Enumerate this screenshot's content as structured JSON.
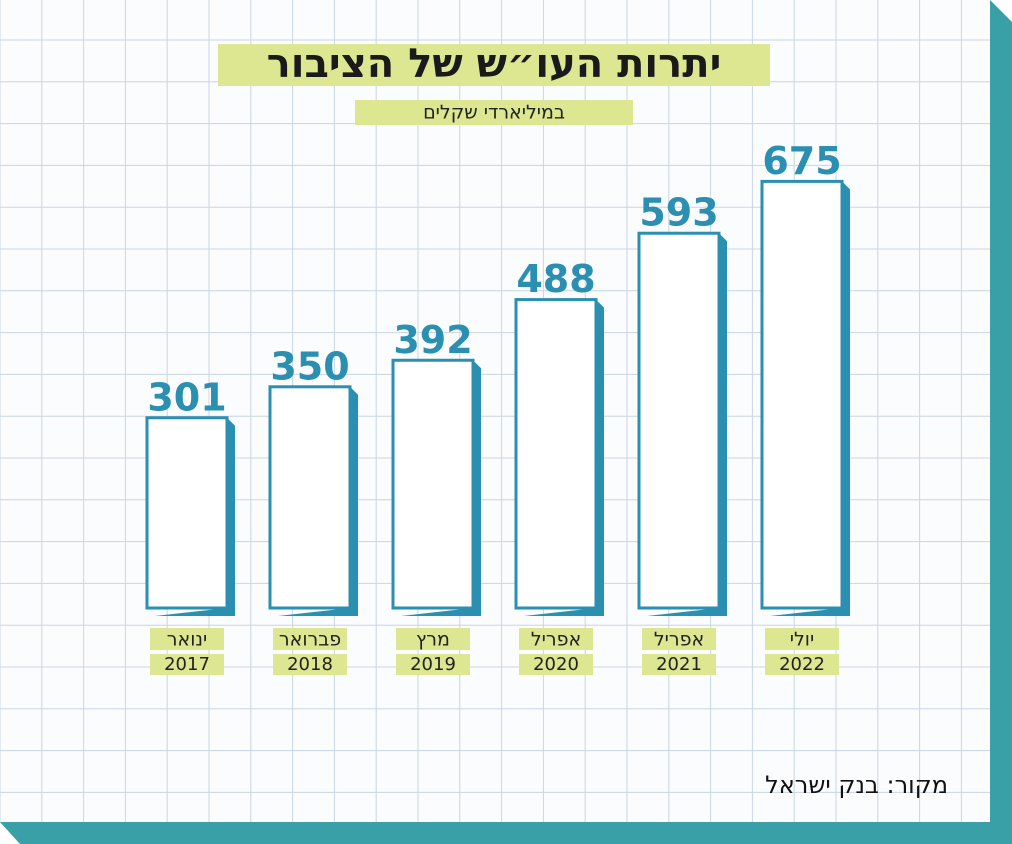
{
  "chart_data": {
    "type": "bar",
    "title": "יתרות העו״ש של הציבור",
    "subtitle": "במיליארדי שקלים",
    "categories": [
      "ינואר",
      "פברואר",
      "מרץ",
      "אפריל",
      "אפריל",
      "יולי"
    ],
    "years": [
      "2017",
      "2018",
      "2019",
      "2020",
      "2021",
      "2022"
    ],
    "values": [
      301,
      350,
      392,
      488,
      593,
      675
    ],
    "color": "#2a8fb0",
    "source": "מקור: בנק ישראל"
  }
}
